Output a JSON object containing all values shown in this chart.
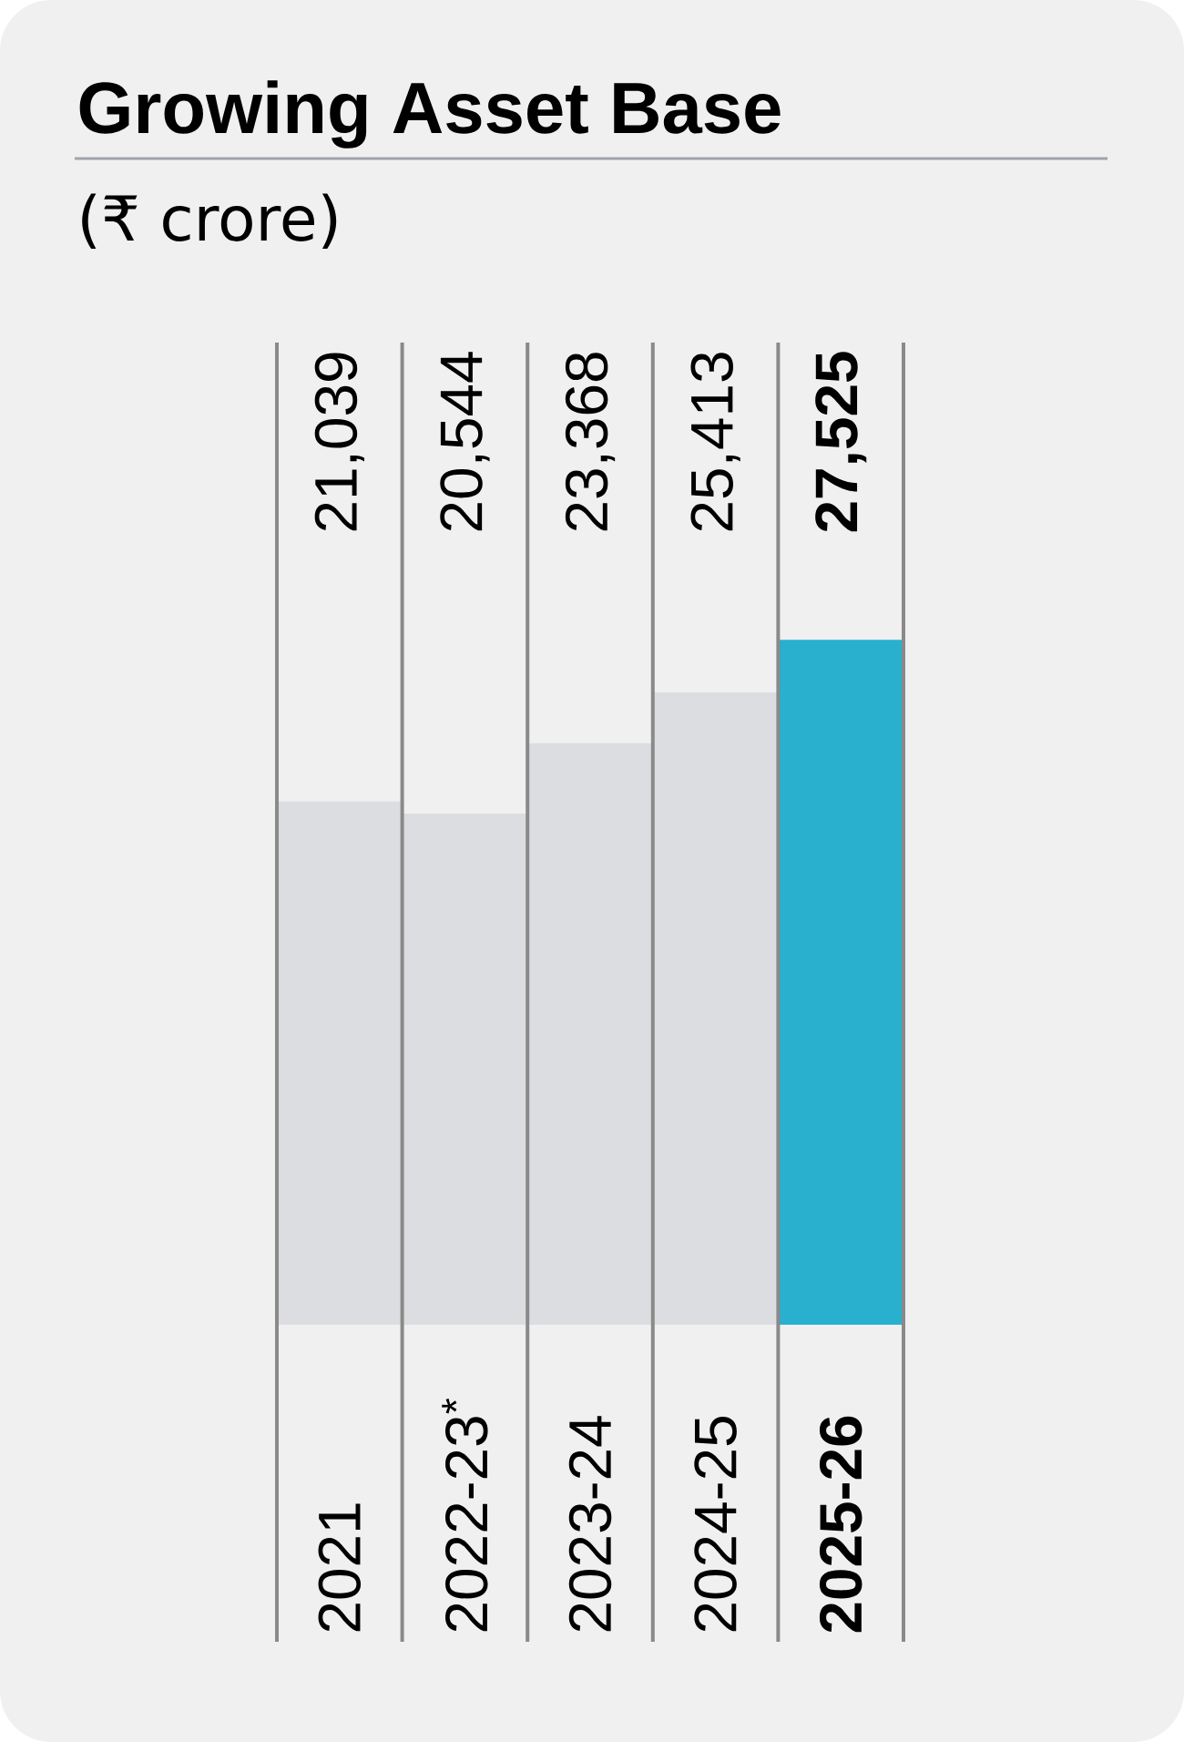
{
  "chart_data": {
    "type": "bar",
    "title": "Growing Asset Base",
    "subtitle": "(₹ crore)",
    "categories": [
      "2021",
      "2022-23$^{*}$",
      "2023-24",
      "2024-25",
      "2025-26"
    ],
    "values": [
      21039,
      20544,
      23368,
      25413,
      27525
    ],
    "value_labels": [
      "21,039",
      "20,544",
      "23,368",
      "25,413",
      "27,525"
    ],
    "colors": [
      "#dcdde0",
      "#dcdde0",
      "#dcdde0",
      "#dcdde0",
      "#29b0ce"
    ]
  }
}
